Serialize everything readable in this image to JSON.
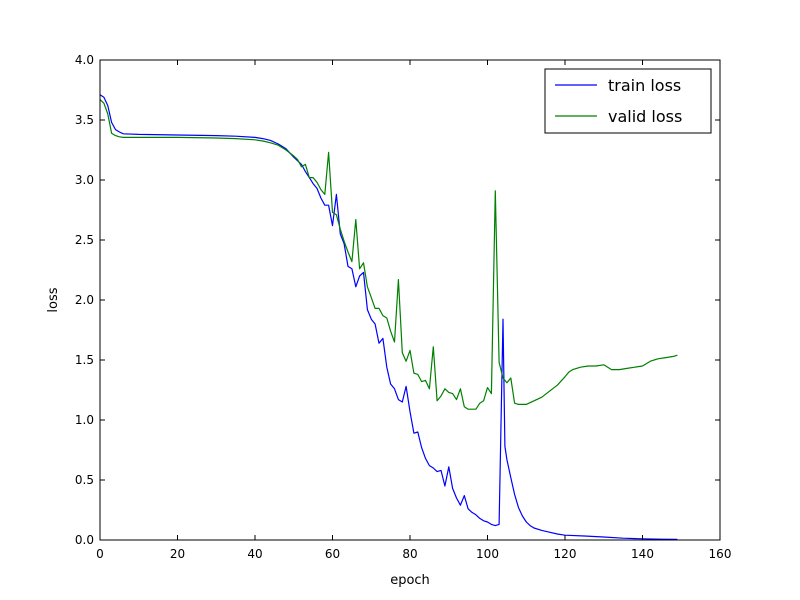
{
  "chart_data": {
    "type": "line",
    "title": "",
    "xlabel": "epoch",
    "ylabel": "loss",
    "xlim": [
      0,
      160
    ],
    "ylim": [
      0.0,
      4.0
    ],
    "xticks": [
      "0",
      "20",
      "40",
      "60",
      "80",
      "100",
      "120",
      "140",
      "160"
    ],
    "yticks": [
      "0.0",
      "0.5",
      "1.0",
      "1.5",
      "2.0",
      "2.5",
      "3.0",
      "3.5",
      "4.0"
    ],
    "grid": false,
    "legend_position": "top-right",
    "series": [
      {
        "name": "train loss",
        "color": "#0000ff",
        "points": [
          [
            0,
            3.71
          ],
          [
            1,
            3.69
          ],
          [
            2,
            3.62
          ],
          [
            3,
            3.48
          ],
          [
            4,
            3.42
          ],
          [
            5,
            3.4
          ],
          [
            6,
            3.385
          ],
          [
            10,
            3.38
          ],
          [
            20,
            3.375
          ],
          [
            30,
            3.37
          ],
          [
            35,
            3.365
          ],
          [
            40,
            3.355
          ],
          [
            42,
            3.345
          ],
          [
            44,
            3.33
          ],
          [
            46,
            3.3
          ],
          [
            48,
            3.26
          ],
          [
            50,
            3.19
          ],
          [
            52,
            3.13
          ],
          [
            53,
            3.07
          ],
          [
            54,
            3.02
          ],
          [
            55,
            2.97
          ],
          [
            56,
            2.93
          ],
          [
            57,
            2.85
          ],
          [
            58,
            2.79
          ],
          [
            59,
            2.79
          ],
          [
            60,
            2.62
          ],
          [
            61,
            2.88
          ],
          [
            62,
            2.55
          ],
          [
            63,
            2.47
          ],
          [
            64,
            2.28
          ],
          [
            65,
            2.26
          ],
          [
            66,
            2.11
          ],
          [
            67,
            2.2
          ],
          [
            68,
            2.23
          ],
          [
            69,
            1.92
          ],
          [
            70,
            1.84
          ],
          [
            71,
            1.8
          ],
          [
            72,
            1.64
          ],
          [
            73,
            1.68
          ],
          [
            74,
            1.44
          ],
          [
            75,
            1.3
          ],
          [
            76,
            1.26
          ],
          [
            77,
            1.17
          ],
          [
            78,
            1.15
          ],
          [
            79,
            1.28
          ],
          [
            80,
            1.07
          ],
          [
            81,
            0.89
          ],
          [
            82,
            0.9
          ],
          [
            83,
            0.77
          ],
          [
            84,
            0.68
          ],
          [
            85,
            0.62
          ],
          [
            86,
            0.6
          ],
          [
            87,
            0.57
          ],
          [
            88,
            0.58
          ],
          [
            89,
            0.45
          ],
          [
            90,
            0.61
          ],
          [
            91,
            0.43
          ],
          [
            92,
            0.35
          ],
          [
            93,
            0.29
          ],
          [
            94,
            0.37
          ],
          [
            95,
            0.26
          ],
          [
            96,
            0.23
          ],
          [
            97,
            0.21
          ],
          [
            98,
            0.18
          ],
          [
            99,
            0.16
          ],
          [
            100,
            0.15
          ],
          [
            101,
            0.13
          ],
          [
            102,
            0.12
          ],
          [
            103,
            0.13
          ],
          [
            104,
            1.84
          ],
          [
            104.5,
            0.78
          ],
          [
            105,
            0.67
          ],
          [
            106,
            0.52
          ],
          [
            107,
            0.38
          ],
          [
            108,
            0.27
          ],
          [
            109,
            0.2
          ],
          [
            110,
            0.15
          ],
          [
            111,
            0.12
          ],
          [
            112,
            0.1
          ],
          [
            114,
            0.08
          ],
          [
            116,
            0.065
          ],
          [
            118,
            0.05
          ],
          [
            120,
            0.04
          ],
          [
            125,
            0.033
          ],
          [
            130,
            0.025
          ],
          [
            135,
            0.015
          ],
          [
            140,
            0.01
          ],
          [
            145,
            0.007
          ],
          [
            149,
            0.005
          ]
        ]
      },
      {
        "name": "valid loss",
        "color": "#008000",
        "points": [
          [
            0,
            3.67
          ],
          [
            1,
            3.64
          ],
          [
            2,
            3.55
          ],
          [
            3,
            3.39
          ],
          [
            4,
            3.37
          ],
          [
            5,
            3.36
          ],
          [
            6,
            3.355
          ],
          [
            10,
            3.355
          ],
          [
            20,
            3.355
          ],
          [
            30,
            3.35
          ],
          [
            35,
            3.345
          ],
          [
            40,
            3.335
          ],
          [
            42,
            3.325
          ],
          [
            44,
            3.31
          ],
          [
            46,
            3.29
          ],
          [
            48,
            3.25
          ],
          [
            50,
            3.2
          ],
          [
            51,
            3.17
          ],
          [
            52,
            3.11
          ],
          [
            53,
            3.13
          ],
          [
            54,
            3.02
          ],
          [
            55,
            3.02
          ],
          [
            56,
            2.98
          ],
          [
            57,
            2.92
          ],
          [
            58,
            2.88
          ],
          [
            59,
            3.23
          ],
          [
            60,
            2.73
          ],
          [
            61,
            2.71
          ],
          [
            62,
            2.59
          ],
          [
            63,
            2.49
          ],
          [
            64,
            2.4
          ],
          [
            65,
            2.32
          ],
          [
            66,
            2.67
          ],
          [
            67,
            2.26
          ],
          [
            68,
            2.31
          ],
          [
            69,
            2.11
          ],
          [
            70,
            2.02
          ],
          [
            71,
            1.93
          ],
          [
            72,
            1.93
          ],
          [
            73,
            1.87
          ],
          [
            74,
            1.85
          ],
          [
            75,
            1.74
          ],
          [
            76,
            1.65
          ],
          [
            77,
            2.17
          ],
          [
            78,
            1.56
          ],
          [
            79,
            1.49
          ],
          [
            80,
            1.58
          ],
          [
            81,
            1.39
          ],
          [
            82,
            1.38
          ],
          [
            83,
            1.32
          ],
          [
            84,
            1.33
          ],
          [
            85,
            1.26
          ],
          [
            86,
            1.61
          ],
          [
            87,
            1.16
          ],
          [
            88,
            1.2
          ],
          [
            89,
            1.26
          ],
          [
            90,
            1.23
          ],
          [
            91,
            1.22
          ],
          [
            92,
            1.17
          ],
          [
            93,
            1.26
          ],
          [
            94,
            1.11
          ],
          [
            95,
            1.09
          ],
          [
            96,
            1.09
          ],
          [
            97,
            1.09
          ],
          [
            98,
            1.14
          ],
          [
            99,
            1.16
          ],
          [
            100,
            1.27
          ],
          [
            101,
            1.22
          ],
          [
            102,
            2.91
          ],
          [
            103,
            1.48
          ],
          [
            104,
            1.35
          ],
          [
            105,
            1.31
          ],
          [
            106,
            1.35
          ],
          [
            107,
            1.14
          ],
          [
            108,
            1.13
          ],
          [
            110,
            1.13
          ],
          [
            112,
            1.16
          ],
          [
            114,
            1.19
          ],
          [
            116,
            1.24
          ],
          [
            118,
            1.29
          ],
          [
            120,
            1.36
          ],
          [
            121,
            1.4
          ],
          [
            122,
            1.42
          ],
          [
            124,
            1.44
          ],
          [
            126,
            1.45
          ],
          [
            128,
            1.45
          ],
          [
            130,
            1.46
          ],
          [
            132,
            1.42
          ],
          [
            134,
            1.42
          ],
          [
            136,
            1.43
          ],
          [
            138,
            1.44
          ],
          [
            140,
            1.45
          ],
          [
            142,
            1.49
          ],
          [
            144,
            1.51
          ],
          [
            146,
            1.52
          ],
          [
            148,
            1.53
          ],
          [
            149,
            1.54
          ]
        ]
      }
    ]
  }
}
